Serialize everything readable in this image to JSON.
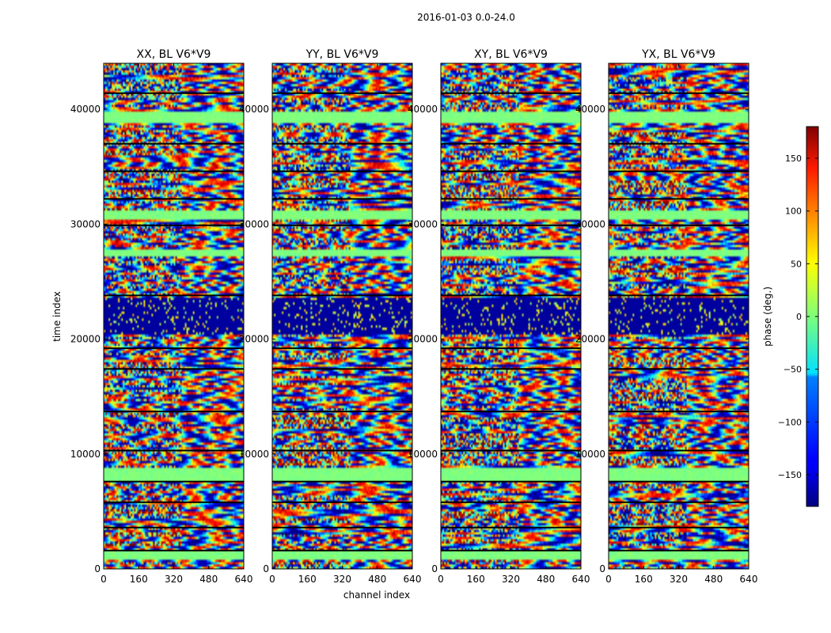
{
  "chart_data": {
    "type": "heatmap",
    "suptitle": "2016-01-03 0.0-24.0",
    "xlabel": "channel index",
    "ylabel": "time index",
    "xlim": [
      0,
      640
    ],
    "ylim": [
      0,
      44000
    ],
    "xticks": [
      0,
      160,
      320,
      480,
      640
    ],
    "yticks": [
      0,
      10000,
      20000,
      30000,
      40000
    ],
    "panels": [
      {
        "title": "XX, BL V6*V9",
        "id": "xx"
      },
      {
        "title": "YY, BL V6*V9",
        "id": "yy"
      },
      {
        "title": "XY, BL V6*V9",
        "id": "xy"
      },
      {
        "title": "YX, BL V6*V9",
        "id": "yx"
      }
    ],
    "colorbar": {
      "label": "phase (deg.)",
      "range": [
        -180,
        180
      ],
      "ticks": [
        -150,
        -100,
        -50,
        0,
        50,
        100,
        150
      ],
      "colormap": "jet"
    },
    "bands": [
      {
        "y0": 20300,
        "y1": 23600,
        "kind": "dark"
      },
      {
        "y0": 38800,
        "y1": 39800,
        "kind": "flat"
      },
      {
        "y0": 30400,
        "y1": 31200,
        "kind": "flat"
      },
      {
        "y0": 7700,
        "y1": 8700,
        "kind": "flat"
      },
      {
        "y0": 900,
        "y1": 1600,
        "kind": "flat"
      },
      {
        "y0": 27200,
        "y1": 27800,
        "kind": "flat"
      }
    ],
    "gaps": [
      1600,
      3600,
      5800,
      7600,
      10300,
      13700,
      17400,
      19200,
      23800,
      29900,
      32200,
      34600,
      37000,
      41400
    ]
  }
}
